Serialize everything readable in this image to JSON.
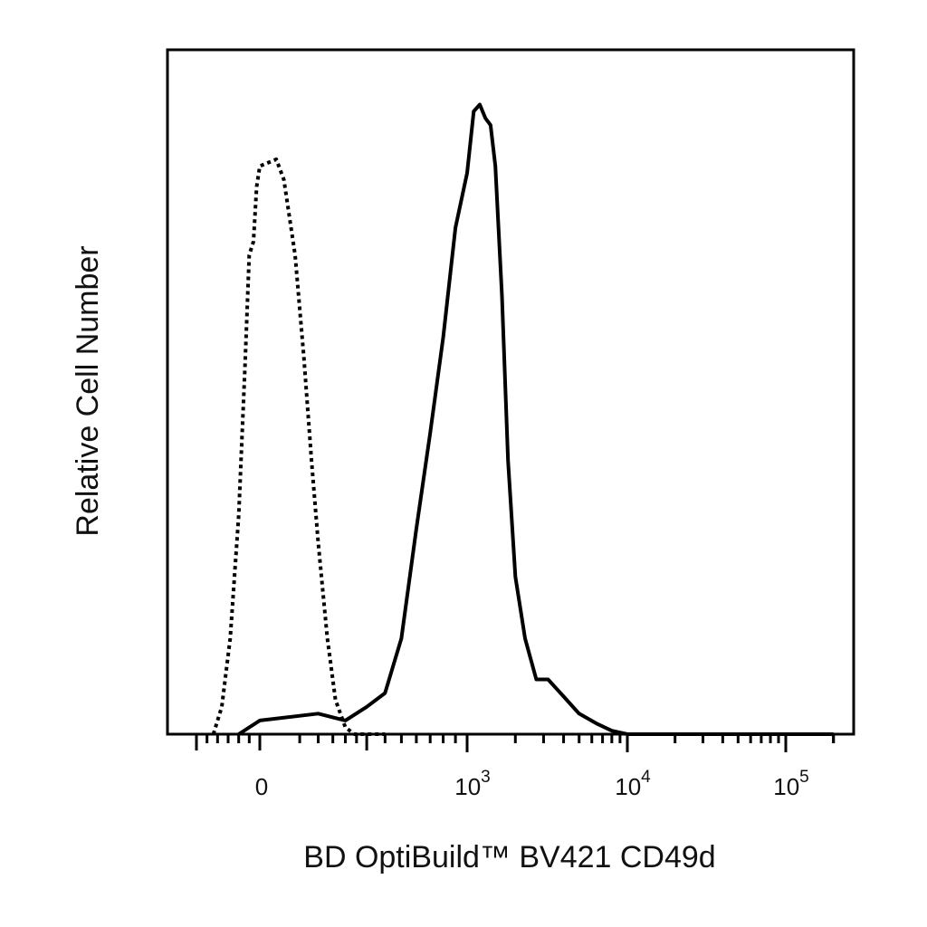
{
  "chart_data": {
    "type": "line",
    "title": "",
    "xlabel": "BD OptiBuild™ BV421 CD49d",
    "ylabel": "Relative Cell Number",
    "x_scale": "biexponential",
    "xlim": [
      -300,
      200000
    ],
    "ylim": [
      0,
      100
    ],
    "grid": false,
    "legend": "none",
    "x_tick_labels": [
      {
        "value": 0,
        "base": "0",
        "exp": ""
      },
      {
        "value": 1000,
        "base": "10",
        "exp": "3"
      },
      {
        "value": 10000,
        "base": "10",
        "exp": "4"
      },
      {
        "value": 100000,
        "base": "10",
        "exp": "5"
      }
    ],
    "series": [
      {
        "style": "dotted",
        "color": "#000000",
        "x": [
          -220,
          -180,
          -140,
          -100,
          -70,
          -50,
          -30,
          -15,
          0,
          10,
          20,
          40,
          60,
          80,
          100,
          130,
          160,
          200,
          240,
          300,
          400
        ],
        "y": [
          0,
          4,
          14,
          32,
          54,
          70,
          72,
          80,
          83,
          84,
          81,
          70,
          55,
          40,
          28,
          14,
          5,
          1,
          0,
          0,
          0
        ]
      },
      {
        "style": "solid",
        "color": "#000000",
        "x": [
          -100,
          0,
          100,
          200,
          300,
          400,
          500,
          600,
          700,
          800,
          900,
          1000,
          1100,
          1200,
          1300,
          1400,
          1500,
          1650,
          1800,
          2000,
          2300,
          2700,
          3200,
          4000,
          5000,
          6500,
          8000,
          10000,
          12000,
          15000,
          20000,
          50000,
          100000,
          200000
        ],
        "y": [
          0,
          2,
          3,
          2,
          4,
          6,
          14,
          30,
          44,
          58,
          74,
          82,
          91,
          92,
          90,
          89,
          83,
          64,
          40,
          23,
          14,
          8,
          8,
          5.5,
          3,
          1.5,
          0.5,
          0,
          0,
          0,
          0,
          0,
          0,
          0
        ]
      }
    ]
  }
}
